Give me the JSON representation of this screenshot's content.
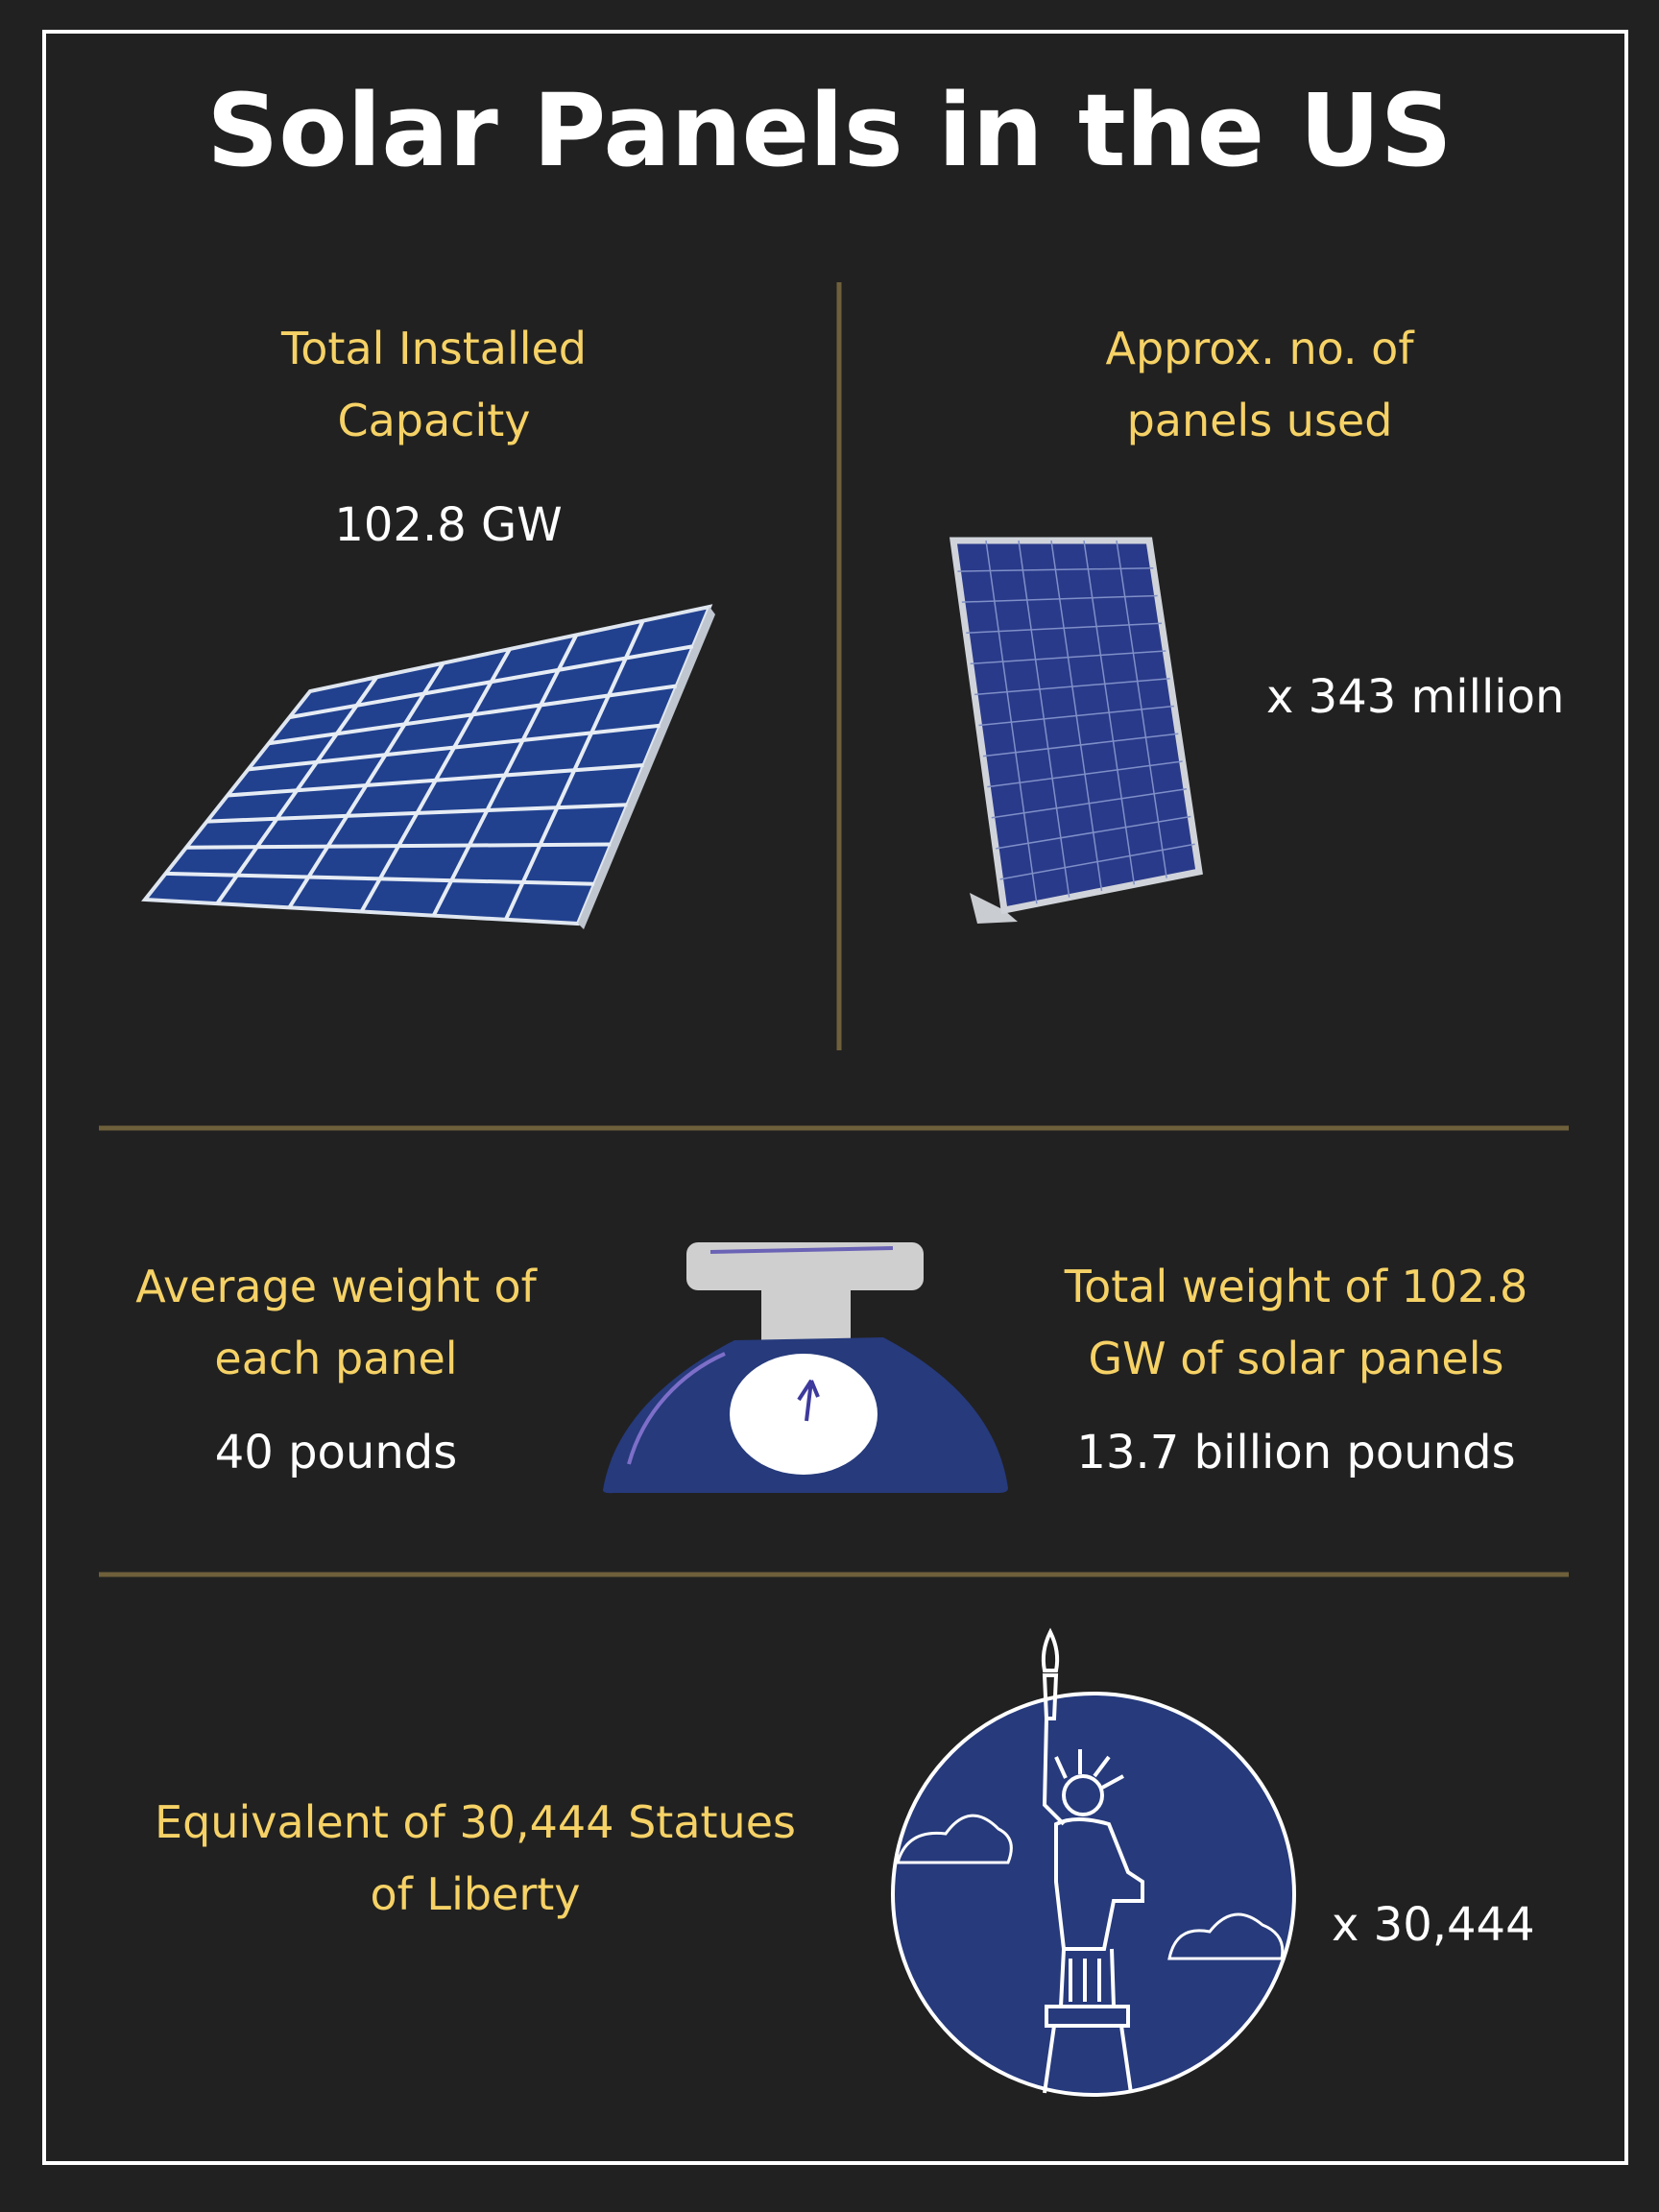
{
  "header": {
    "title": "Solar Panels in the US"
  },
  "capacity": {
    "heading": [
      "Total Installed",
      "Capacity"
    ],
    "value": "102.8 GW"
  },
  "panels": {
    "heading": [
      "Approx. no. of",
      "panels used"
    ],
    "value": "x 343 million"
  },
  "average_weight": {
    "heading": [
      "Average weight of",
      "each panel"
    ],
    "value": "40 pounds"
  },
  "total_weight": {
    "heading": [
      "Total weight of 102.8",
      "GW of solar panels"
    ],
    "value": "13.7 billion pounds"
  },
  "liberty": {
    "heading": [
      "Equivalent of 30,444 Statues",
      "of Liberty"
    ],
    "value": "x 30,444"
  }
}
